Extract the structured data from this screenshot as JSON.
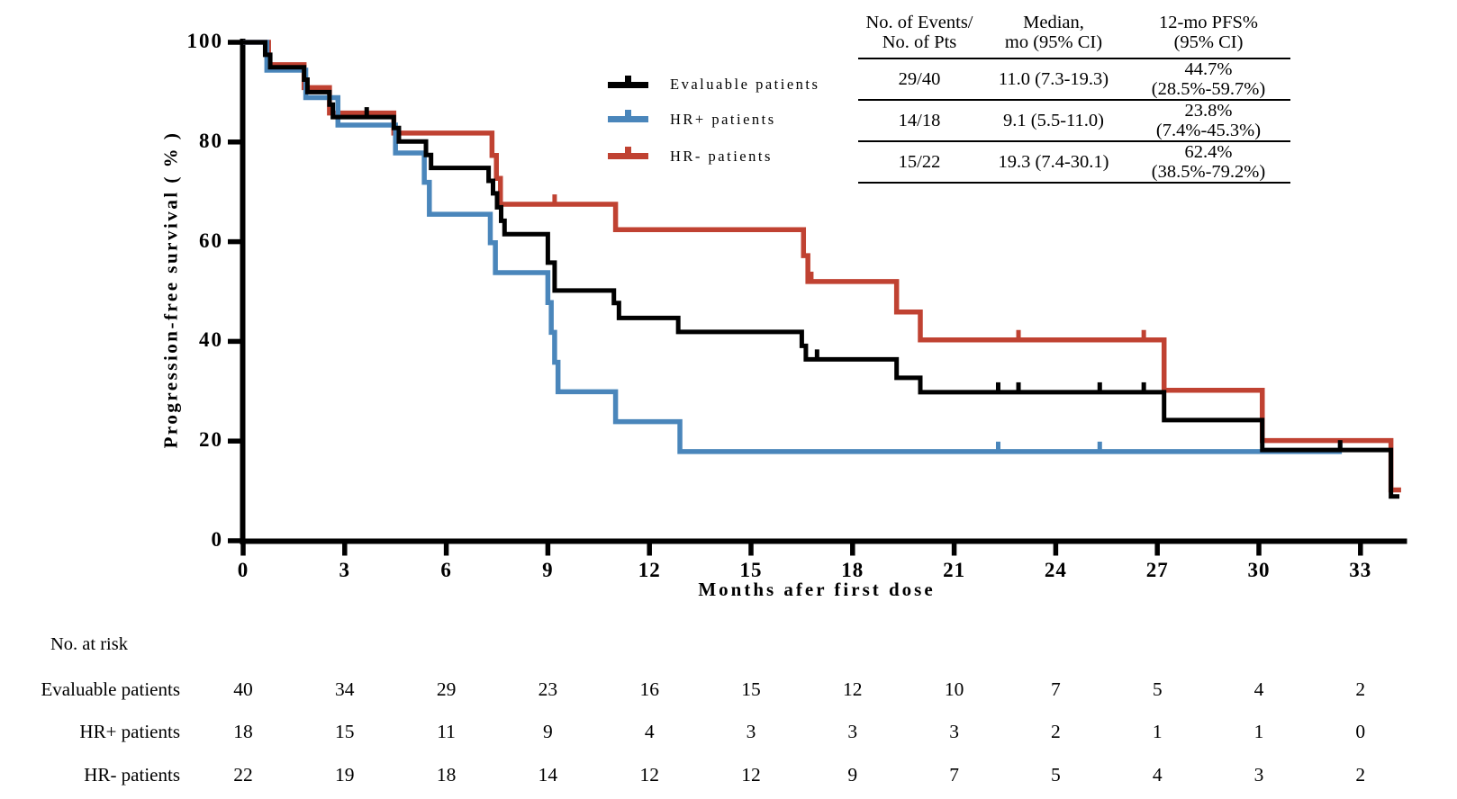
{
  "figure_title": "",
  "axes": {
    "x_title": "Months afer first dose",
    "y_title": "Progression-free survival ( % )"
  },
  "legend": [
    {
      "label": "Evaluable patients",
      "color": "#000000"
    },
    {
      "label": "HR+ patients",
      "color": "#4A86BB"
    },
    {
      "label": "HR- patients",
      "color": "#C04232"
    }
  ],
  "summary_table": {
    "headers": [
      [
        "No. of Events/",
        "No. of Pts"
      ],
      [
        "Median,",
        "mo (95% CI)"
      ],
      [
        "12-mo PFS%",
        "(95% CI)"
      ]
    ],
    "rows": [
      [
        "29/40",
        "11.0 (7.3-19.3)",
        "44.7% (28.5%-59.7%)"
      ],
      [
        "14/18",
        "9.1 (5.5-11.0)",
        "23.8% (7.4%-45.3%)"
      ],
      [
        "15/22",
        "19.3 (7.4-30.1)",
        "62.4% (38.5%-79.2%)"
      ]
    ]
  },
  "risk_table": {
    "title": "No. at risk",
    "rows": [
      {
        "label": "Evaluable patients",
        "values": [
          40,
          34,
          29,
          23,
          16,
          15,
          12,
          10,
          7,
          5,
          4,
          2
        ]
      },
      {
        "label": "HR+ patients",
        "values": [
          18,
          15,
          11,
          9,
          4,
          3,
          3,
          3,
          2,
          1,
          1,
          0
        ]
      },
      {
        "label": "HR- patients",
        "values": [
          22,
          19,
          18,
          14,
          12,
          12,
          9,
          7,
          5,
          4,
          3,
          2
        ]
      }
    ]
  },
  "chart_data": {
    "type": "line",
    "subtype": "kaplan-meier-step",
    "title": "",
    "xlabel": "Months afer first dose",
    "ylabel": "Progression-free survival ( % )",
    "xlim": [
      0,
      34.5
    ],
    "ylim": [
      0,
      100
    ],
    "x_ticks": [
      0,
      3,
      6,
      9,
      12,
      15,
      18,
      21,
      24,
      27,
      30,
      33
    ],
    "y_ticks": [
      0,
      20,
      40,
      60,
      80,
      100
    ],
    "legend_position": "upper-center-left",
    "grid": false,
    "series": [
      {
        "name": "Evaluable patients",
        "key": "evaluable",
        "color": "#000000",
        "events_over_pts": "29/40",
        "median_mo": "11.0 (7.3-19.3)",
        "pfs_12mo": "44.7% (28.5%-59.7%)",
        "steps": [
          [
            0,
            100
          ],
          [
            0.65,
            97.5
          ],
          [
            0.8,
            95
          ],
          [
            1.8,
            92.5
          ],
          [
            1.9,
            90
          ],
          [
            2.55,
            87.5
          ],
          [
            2.65,
            85
          ],
          [
            4.45,
            82.8
          ],
          [
            4.6,
            80.1
          ],
          [
            5.4,
            77.4
          ],
          [
            5.55,
            74.8
          ],
          [
            7.25,
            72.2
          ],
          [
            7.38,
            69.7
          ],
          [
            7.5,
            66.9
          ],
          [
            7.62,
            64.2
          ],
          [
            7.72,
            61.5
          ],
          [
            9.0,
            55.8
          ],
          [
            9.2,
            50.2
          ],
          [
            10.95,
            47.7
          ],
          [
            11.1,
            44.7
          ],
          [
            12.85,
            41.9
          ],
          [
            16.5,
            39.1
          ],
          [
            16.62,
            36.4
          ],
          [
            19.3,
            32.7
          ],
          [
            20.0,
            29.8
          ],
          [
            27.2,
            24.2
          ],
          [
            30.1,
            18.2
          ],
          [
            33.9,
            8.9
          ],
          [
            34.15,
            8.9
          ]
        ],
        "censor_marks": [
          [
            3.65,
            85
          ],
          [
            16.95,
            36.4
          ],
          [
            22.3,
            29.8
          ],
          [
            22.9,
            29.8
          ],
          [
            25.3,
            29.8
          ],
          [
            26.6,
            29.8
          ],
          [
            32.4,
            18.2
          ]
        ]
      },
      {
        "name": "HR+ patients",
        "key": "hr-positive",
        "color": "#4A86BB",
        "events_over_pts": "14/18",
        "median_mo": "9.1 (5.5-11.0)",
        "pfs_12mo": "23.8% (7.4%-45.3%)",
        "steps": [
          [
            0,
            100
          ],
          [
            0.7,
            94.4
          ],
          [
            1.85,
            88.9
          ],
          [
            2.8,
            83.4
          ],
          [
            4.5,
            77.8
          ],
          [
            5.35,
            71.9
          ],
          [
            5.5,
            65.5
          ],
          [
            7.3,
            59.8
          ],
          [
            7.45,
            53.8
          ],
          [
            9.0,
            47.8
          ],
          [
            9.1,
            41.8
          ],
          [
            9.2,
            35.8
          ],
          [
            9.3,
            29.9
          ],
          [
            11.0,
            23.9
          ],
          [
            12.9,
            17.9
          ],
          [
            32.45,
            17.9
          ]
        ],
        "censor_marks": [
          [
            22.3,
            17.9
          ],
          [
            25.3,
            17.9
          ],
          [
            32.4,
            17.9
          ]
        ]
      },
      {
        "name": "HR- patients",
        "key": "hr-negative",
        "color": "#C04232",
        "events_over_pts": "15/22",
        "median_mo": "19.3 (7.4-30.1)",
        "pfs_12mo": "62.4% (38.5%-79.2%)",
        "steps": [
          [
            0,
            100
          ],
          [
            0.75,
            95.5
          ],
          [
            1.8,
            90.9
          ],
          [
            2.55,
            85.8
          ],
          [
            4.45,
            81.8
          ],
          [
            7.35,
            77.3
          ],
          [
            7.48,
            72.7
          ],
          [
            7.6,
            67.5
          ],
          [
            11.0,
            62.4
          ],
          [
            16.55,
            57.2
          ],
          [
            16.68,
            52.0
          ],
          [
            19.3,
            45.9
          ],
          [
            20.0,
            40.3
          ],
          [
            27.2,
            30.2
          ],
          [
            30.1,
            20.1
          ],
          [
            33.9,
            10.2
          ],
          [
            34.2,
            10.2
          ]
        ],
        "censor_marks": [
          [
            9.2,
            67.5
          ],
          [
            16.78,
            52.0
          ],
          [
            22.9,
            40.3
          ],
          [
            26.6,
            40.3
          ]
        ]
      }
    ]
  }
}
